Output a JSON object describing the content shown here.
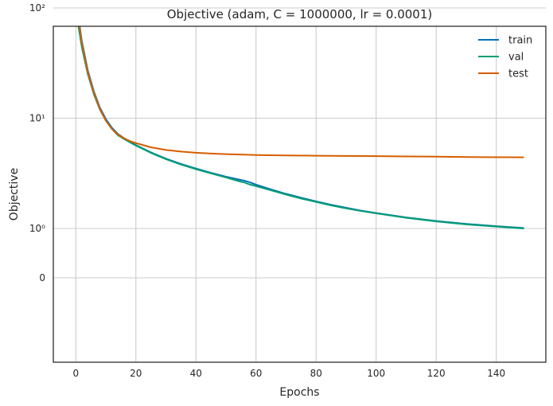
{
  "chart_data": {
    "type": "line",
    "title": "Objective (adam, C = 1000000, lr = 0.0001)",
    "xlabel": "Epochs",
    "ylabel": "Objective",
    "yscale": "symlog",
    "grid": true,
    "legend_position": "top-right",
    "xlim": [
      -7.5,
      156.5
    ],
    "x_ticks": [
      0,
      20,
      40,
      60,
      80,
      100,
      120,
      140
    ],
    "y_ticks": [
      {
        "value": 0,
        "label": "0"
      },
      {
        "value": 1,
        "label": "10⁰"
      },
      {
        "value": 10,
        "label": "10¹"
      },
      {
        "value": 100,
        "label": "10²"
      }
    ],
    "series": [
      {
        "name": "train",
        "color": "#0072b2",
        "points": [
          [
            0,
            120
          ],
          [
            2,
            50
          ],
          [
            4,
            27
          ],
          [
            6,
            17.5
          ],
          [
            8,
            12.5
          ],
          [
            10,
            9.8
          ],
          [
            12,
            8.2
          ],
          [
            14,
            7.2
          ],
          [
            16,
            6.6
          ],
          [
            18,
            6.1
          ],
          [
            20,
            5.7
          ],
          [
            25,
            4.9
          ],
          [
            30,
            4.3
          ],
          [
            35,
            3.85
          ],
          [
            40,
            3.5
          ],
          [
            45,
            3.2
          ],
          [
            50,
            2.95
          ],
          [
            55,
            2.75
          ],
          [
            56,
            2.72
          ],
          [
            58,
            2.62
          ],
          [
            60,
            2.5
          ],
          [
            65,
            2.26
          ],
          [
            70,
            2.06
          ],
          [
            75,
            1.9
          ],
          [
            80,
            1.76
          ],
          [
            85,
            1.64
          ],
          [
            90,
            1.54
          ],
          [
            95,
            1.45
          ],
          [
            100,
            1.38
          ],
          [
            110,
            1.26
          ],
          [
            120,
            1.17
          ],
          [
            130,
            1.1
          ],
          [
            140,
            1.05
          ],
          [
            149,
            1.01
          ]
        ]
      },
      {
        "name": "val",
        "color": "#009e73",
        "points": [
          [
            0,
            95
          ],
          [
            2,
            44
          ],
          [
            4,
            25
          ],
          [
            6,
            16.5
          ],
          [
            8,
            12
          ],
          [
            10,
            9.5
          ],
          [
            12,
            8.0
          ],
          [
            14,
            7.0
          ],
          [
            16,
            6.5
          ],
          [
            18,
            6.05
          ],
          [
            20,
            5.65
          ],
          [
            25,
            4.85
          ],
          [
            30,
            4.25
          ],
          [
            35,
            3.8
          ],
          [
            40,
            3.45
          ],
          [
            45,
            3.16
          ],
          [
            50,
            2.9
          ],
          [
            55,
            2.65
          ],
          [
            56,
            2.62
          ],
          [
            58,
            2.5
          ],
          [
            60,
            2.42
          ],
          [
            65,
            2.22
          ],
          [
            70,
            2.03
          ],
          [
            75,
            1.87
          ],
          [
            80,
            1.74
          ],
          [
            85,
            1.62
          ],
          [
            90,
            1.52
          ],
          [
            95,
            1.44
          ],
          [
            100,
            1.37
          ],
          [
            110,
            1.25
          ],
          [
            120,
            1.16
          ],
          [
            130,
            1.09
          ],
          [
            140,
            1.04
          ],
          [
            149,
            1.0
          ]
        ]
      },
      {
        "name": "test",
        "color": "#d55e00",
        "points": [
          [
            0,
            120
          ],
          [
            2,
            48
          ],
          [
            4,
            26
          ],
          [
            6,
            17
          ],
          [
            8,
            12.2
          ],
          [
            10,
            9.5
          ],
          [
            12,
            8.0
          ],
          [
            14,
            7.1
          ],
          [
            16,
            6.6
          ],
          [
            18,
            6.2
          ],
          [
            20,
            5.95
          ],
          [
            25,
            5.45
          ],
          [
            30,
            5.15
          ],
          [
            35,
            4.98
          ],
          [
            40,
            4.86
          ],
          [
            45,
            4.78
          ],
          [
            50,
            4.72
          ],
          [
            55,
            4.68
          ],
          [
            60,
            4.64
          ],
          [
            70,
            4.6
          ],
          [
            80,
            4.57
          ],
          [
            90,
            4.55
          ],
          [
            100,
            4.53
          ],
          [
            110,
            4.5
          ],
          [
            120,
            4.48
          ],
          [
            130,
            4.45
          ],
          [
            140,
            4.43
          ],
          [
            149,
            4.42
          ]
        ]
      }
    ]
  }
}
